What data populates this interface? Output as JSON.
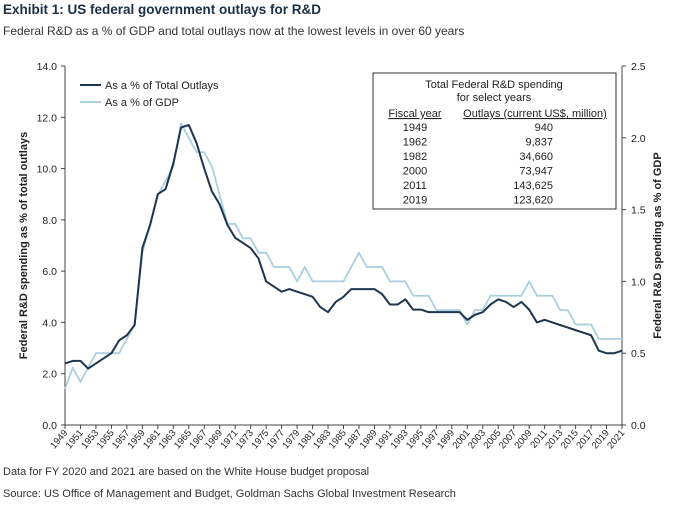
{
  "header": {
    "title": "Exhibit 1: US federal government outlays for R&D",
    "subtitle": "Federal R&D as a % of GDP and total outlays now at the lowest levels in over 60 years"
  },
  "footer": {
    "note": "Data for FY 2020 and 2021 are based on the White House budget proposal",
    "source": "Source: US Office of Management and Budget, Goldman Sachs Global Investment Research"
  },
  "chart_data": {
    "type": "line",
    "ylabel": "Federal R&D spending as % of total outlays",
    "y2label": "Federal R&D spending as % of GDP",
    "ylim": [
      0,
      14
    ],
    "y2lim": [
      0,
      2.5
    ],
    "yticks": [
      "0.0",
      "2.0",
      "4.0",
      "6.0",
      "8.0",
      "10.0",
      "12.0",
      "14.0"
    ],
    "y2ticks": [
      "0.0",
      "0.5",
      "1.0",
      "1.5",
      "2.0",
      "2.5"
    ],
    "grid": false,
    "legend_position": "top-left",
    "x": [
      1949,
      1950,
      1951,
      1952,
      1953,
      1954,
      1955,
      1956,
      1957,
      1958,
      1959,
      1960,
      1961,
      1962,
      1963,
      1964,
      1965,
      1966,
      1967,
      1968,
      1969,
      1970,
      1971,
      1972,
      1973,
      1974,
      1975,
      1976,
      1977,
      1978,
      1979,
      1980,
      1981,
      1982,
      1983,
      1984,
      1985,
      1986,
      1987,
      1988,
      1989,
      1990,
      1991,
      1992,
      1993,
      1994,
      1995,
      1996,
      1997,
      1998,
      1999,
      2000,
      2001,
      2002,
      2003,
      2004,
      2005,
      2006,
      2007,
      2008,
      2009,
      2010,
      2011,
      2012,
      2013,
      2014,
      2015,
      2016,
      2017,
      2018,
      2019,
      2020,
      2021
    ],
    "xtick_labels": [
      "1949",
      "1951",
      "1953",
      "1955",
      "1957",
      "1959",
      "1961",
      "1963",
      "1965",
      "1967",
      "1969",
      "1971",
      "1973",
      "1975",
      "1977",
      "1979",
      "1981",
      "1983",
      "1985",
      "1987",
      "1989",
      "1991",
      "1993",
      "1995",
      "1997",
      "1999",
      "2001",
      "2003",
      "2005",
      "2007",
      "2009",
      "2011",
      "2013",
      "2015",
      "2017",
      "2019",
      "2021"
    ],
    "series": [
      {
        "name": "As a % of Total Outlays",
        "axis": "left",
        "color": "#1c3550",
        "values": [
          2.4,
          2.5,
          2.5,
          2.2,
          2.4,
          2.6,
          2.8,
          3.3,
          3.5,
          3.9,
          6.9,
          7.8,
          9.0,
          9.2,
          10.2,
          11.6,
          11.7,
          11.0,
          10.0,
          9.1,
          8.6,
          7.8,
          7.3,
          7.1,
          6.9,
          6.5,
          5.6,
          5.4,
          5.2,
          5.3,
          5.2,
          5.1,
          5.0,
          4.6,
          4.4,
          4.8,
          5.0,
          5.3,
          5.3,
          5.3,
          5.3,
          5.1,
          4.7,
          4.7,
          4.9,
          4.5,
          4.5,
          4.4,
          4.4,
          4.4,
          4.4,
          4.4,
          4.1,
          4.3,
          4.4,
          4.7,
          4.9,
          4.8,
          4.6,
          4.8,
          4.5,
          4.0,
          4.1,
          4.0,
          3.9,
          3.8,
          3.7,
          3.6,
          3.5,
          2.9,
          2.8,
          2.8,
          2.9
        ]
      },
      {
        "name": "As a % of GDP",
        "axis": "right",
        "color": "#a9cfe1",
        "values": [
          0.25,
          0.4,
          0.3,
          0.4,
          0.5,
          0.5,
          0.5,
          0.5,
          0.6,
          0.7,
          1.2,
          1.4,
          1.6,
          1.7,
          1.8,
          2.1,
          2.0,
          1.9,
          1.9,
          1.8,
          1.6,
          1.4,
          1.4,
          1.3,
          1.3,
          1.2,
          1.2,
          1.1,
          1.1,
          1.1,
          1.0,
          1.1,
          1.0,
          1.0,
          1.0,
          1.0,
          1.0,
          1.1,
          1.2,
          1.1,
          1.1,
          1.1,
          1.0,
          1.0,
          1.0,
          0.9,
          0.9,
          0.9,
          0.8,
          0.8,
          0.8,
          0.8,
          0.7,
          0.8,
          0.8,
          0.9,
          0.9,
          0.9,
          0.9,
          0.9,
          1.0,
          0.9,
          0.9,
          0.9,
          0.8,
          0.8,
          0.7,
          0.7,
          0.7,
          0.6,
          0.6,
          0.6,
          0.6
        ]
      }
    ],
    "table": {
      "title_line1": "Total Federal R&D spending",
      "title_line2": "for select years",
      "headers": [
        "Fiscal year",
        "Outlays (current US$, million)"
      ],
      "rows": [
        [
          "1949",
          "940"
        ],
        [
          "1962",
          "9,837"
        ],
        [
          "1982",
          "34,660"
        ],
        [
          "2000",
          "73,947"
        ],
        [
          "2011",
          "143,625"
        ],
        [
          "2019",
          "123,620"
        ]
      ]
    }
  }
}
